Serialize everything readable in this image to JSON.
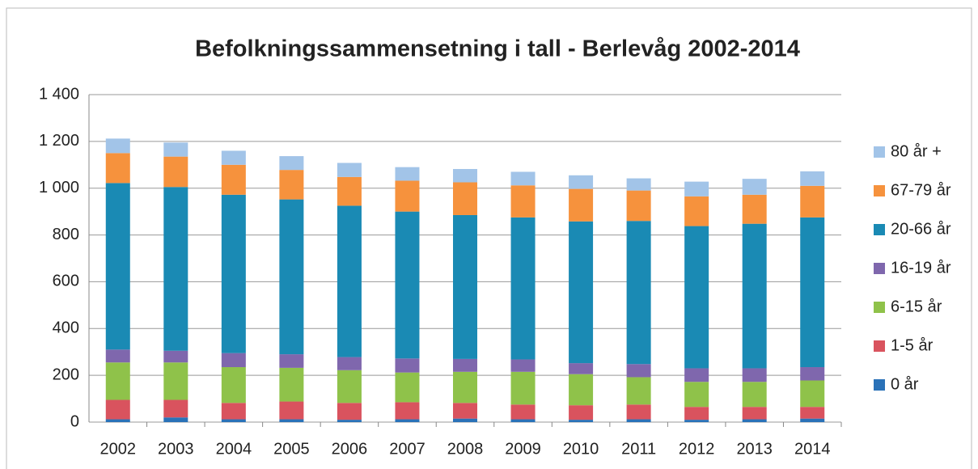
{
  "chart_data": {
    "type": "stacked_bar",
    "title": "Befolkningssammensetning i tall - Berlevåg 2002-2014",
    "categories": [
      "2002",
      "2003",
      "2004",
      "2005",
      "2006",
      "2007",
      "2008",
      "2009",
      "2010",
      "2011",
      "2012",
      "2013",
      "2014"
    ],
    "series": [
      {
        "name": "0 år",
        "color": "#2a72b8",
        "values": [
          12,
          20,
          12,
          12,
          10,
          12,
          15,
          12,
          10,
          12,
          10,
          12,
          15
        ]
      },
      {
        "name": "1-5 år",
        "color": "#d9535e",
        "values": [
          83,
          75,
          70,
          76,
          72,
          73,
          67,
          63,
          62,
          63,
          55,
          53,
          50
        ]
      },
      {
        "name": "6-15 år",
        "color": "#8fc24a",
        "values": [
          160,
          160,
          153,
          144,
          140,
          127,
          133,
          140,
          133,
          117,
          107,
          107,
          113
        ]
      },
      {
        "name": "16-19 år",
        "color": "#7f67ad",
        "values": [
          55,
          50,
          60,
          58,
          56,
          60,
          55,
          53,
          47,
          56,
          58,
          58,
          57
        ]
      },
      {
        "name": "20-66 år",
        "color": "#1a8ab4",
        "values": [
          712,
          700,
          677,
          662,
          647,
          628,
          615,
          607,
          606,
          612,
          608,
          618,
          640
        ]
      },
      {
        "name": "67-79 år",
        "color": "#f6923d",
        "values": [
          128,
          130,
          128,
          126,
          123,
          132,
          140,
          137,
          139,
          130,
          127,
          124,
          135
        ]
      },
      {
        "name": "80 år +",
        "color": "#a2c4e8",
        "values": [
          62,
          60,
          60,
          59,
          60,
          58,
          57,
          58,
          58,
          52,
          63,
          68,
          62
        ]
      }
    ],
    "ylim": [
      0,
      1400
    ],
    "yticks": [
      0,
      200,
      400,
      600,
      800,
      {
        "value": 1000,
        "label": "1 000"
      },
      {
        "value": 1200,
        "label": "1 200"
      },
      {
        "value": 1400,
        "label": "1 400"
      }
    ],
    "grid": true
  }
}
